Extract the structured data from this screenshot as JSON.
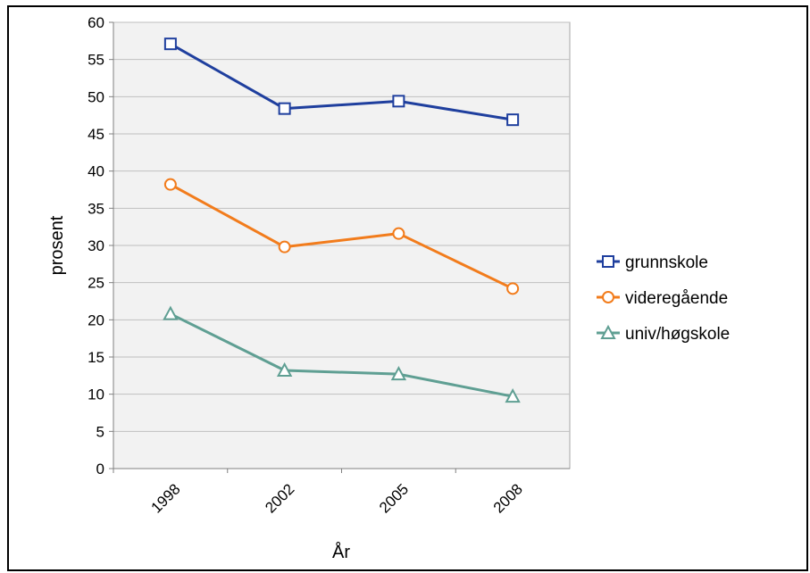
{
  "chart_data": {
    "type": "line",
    "title": "",
    "xlabel": "År",
    "ylabel": "prosent",
    "categories": [
      "1998",
      "2002",
      "2005",
      "2008"
    ],
    "ylim": [
      0,
      60
    ],
    "yticks": [
      0,
      5,
      10,
      15,
      20,
      25,
      30,
      35,
      40,
      45,
      50,
      55,
      60
    ],
    "grid": true,
    "legend_position": "right",
    "series": [
      {
        "name": "grunnskole",
        "values": [
          57.1,
          48.4,
          49.4,
          46.9
        ],
        "color": "#1f3f9e",
        "marker": "square"
      },
      {
        "name": "videregående",
        "values": [
          38.2,
          29.8,
          31.6,
          24.2
        ],
        "color": "#f27c1c",
        "marker": "circle"
      },
      {
        "name": "univ/høgskole",
        "values": [
          20.8,
          13.2,
          12.7,
          9.7
        ],
        "color": "#5f9f93",
        "marker": "triangle"
      }
    ]
  }
}
